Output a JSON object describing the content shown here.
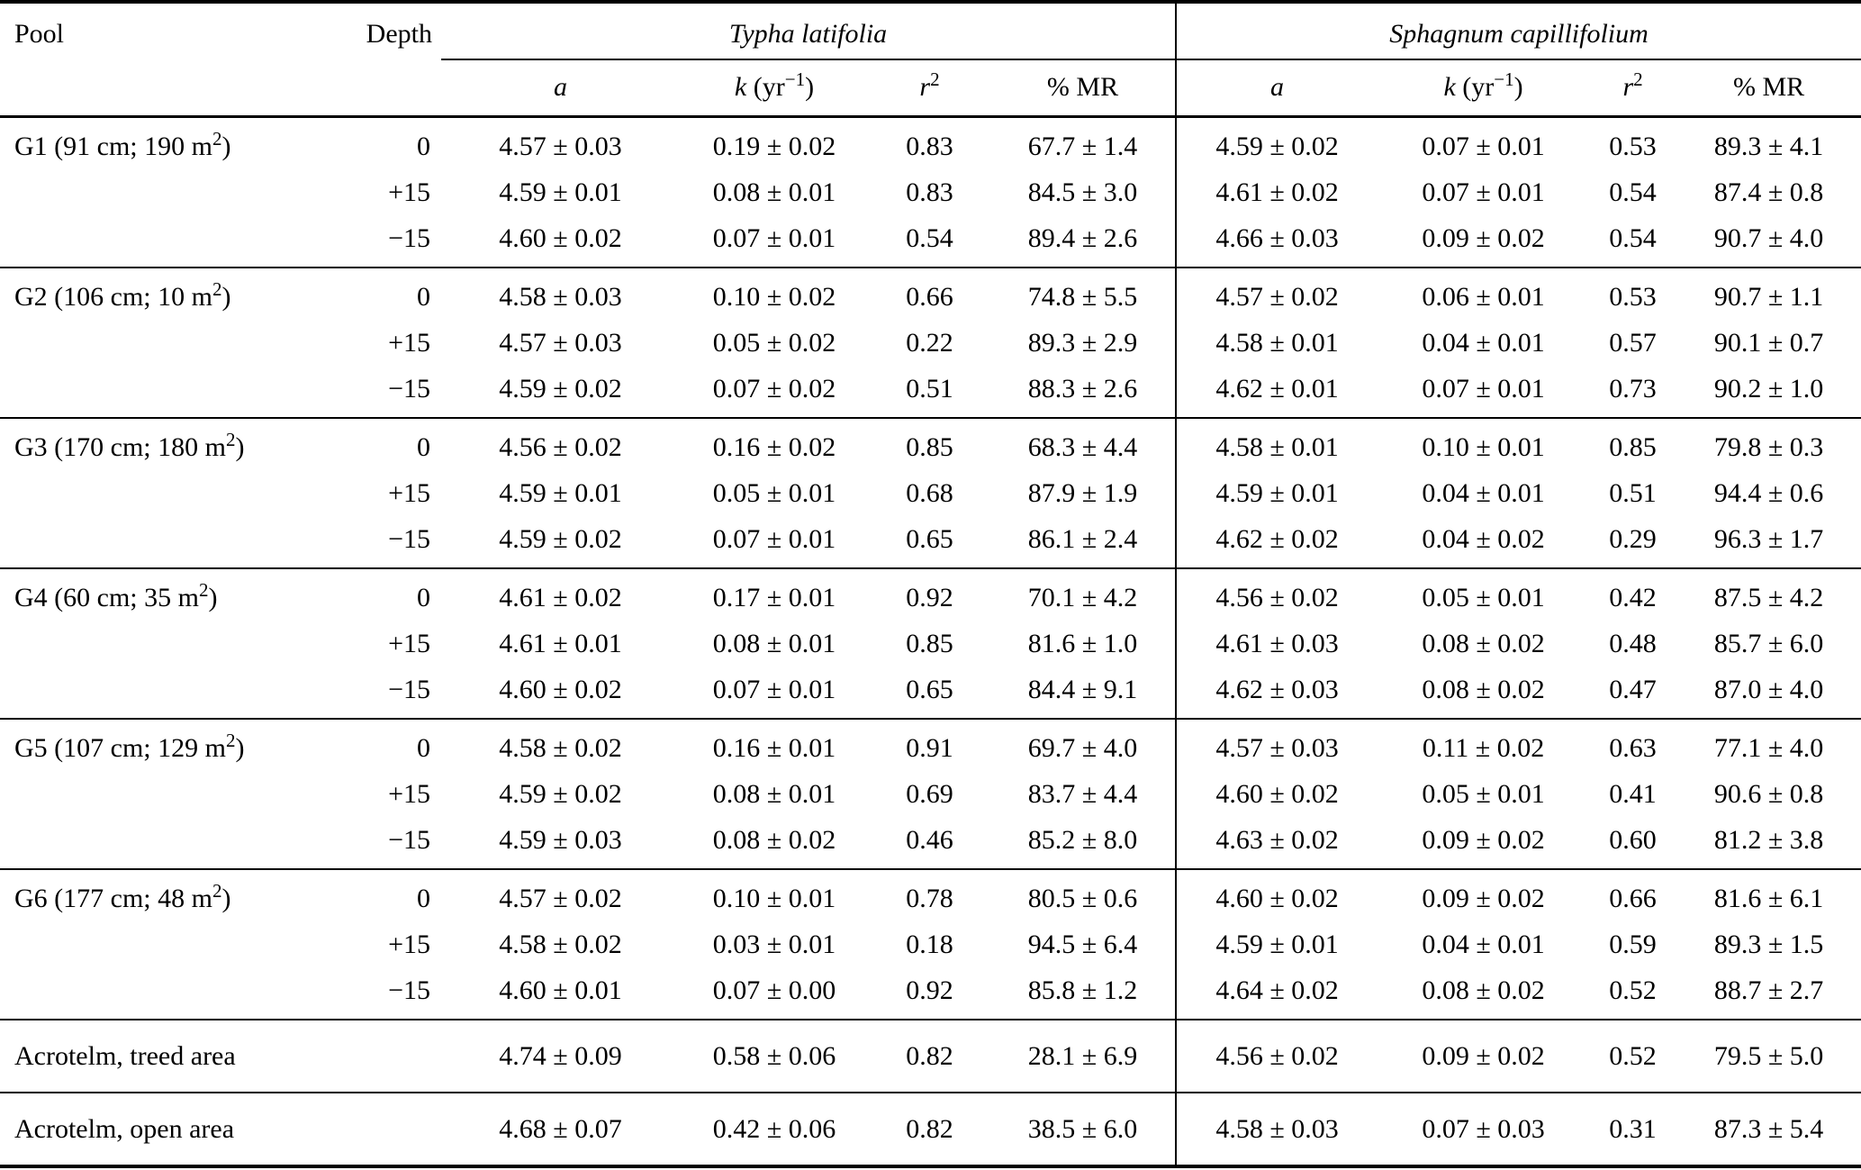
{
  "table": {
    "headers": {
      "pool": "Pool",
      "depth": "Depth",
      "group1": "Typha latifolia",
      "group2": "Sphagnum capillifolium",
      "stats": [
        {
          "sym": "a",
          "pre": "",
          "sup": "",
          "post": ""
        },
        {
          "sym": "k",
          "pre": " (yr",
          "sup": "−1",
          "post": ")"
        },
        {
          "sym": "r",
          "pre": "",
          "sup": "2",
          "post": ""
        },
        {
          "sym": "",
          "pre": "% MR",
          "sup": "",
          "post": ""
        }
      ]
    },
    "blocks": [
      {
        "pool": {
          "text": "G1 (91 cm; 190 m",
          "sup": "2",
          "post": ")"
        },
        "rows": [
          {
            "depth": "0",
            "typha": [
              "4.57 ± 0.03",
              "0.19 ± 0.02",
              "0.83",
              "67.7 ± 1.4"
            ],
            "sphagnum": [
              "4.59 ± 0.02",
              "0.07 ± 0.01",
              "0.53",
              "89.3 ± 4.1"
            ]
          },
          {
            "depth": "+15",
            "typha": [
              "4.59 ± 0.01",
              "0.08 ± 0.01",
              "0.83",
              "84.5 ± 3.0"
            ],
            "sphagnum": [
              "4.61 ± 0.02",
              "0.07 ± 0.01",
              "0.54",
              "87.4 ± 0.8"
            ]
          },
          {
            "depth": "−15",
            "typha": [
              "4.60 ± 0.02",
              "0.07 ± 0.01",
              "0.54",
              "89.4 ± 2.6"
            ],
            "sphagnum": [
              "4.66 ± 0.03",
              "0.09 ± 0.02",
              "0.54",
              "90.7 ± 4.0"
            ]
          }
        ]
      },
      {
        "pool": {
          "text": "G2 (106 cm; 10 m",
          "sup": "2",
          "post": ")"
        },
        "rows": [
          {
            "depth": "0",
            "typha": [
              "4.58 ± 0.03",
              "0.10 ± 0.02",
              "0.66",
              "74.8 ± 5.5"
            ],
            "sphagnum": [
              "4.57 ± 0.02",
              "0.06 ± 0.01",
              "0.53",
              "90.7 ± 1.1"
            ]
          },
          {
            "depth": "+15",
            "typha": [
              "4.57 ± 0.03",
              "0.05 ± 0.02",
              "0.22",
              "89.3 ± 2.9"
            ],
            "sphagnum": [
              "4.58 ± 0.01",
              "0.04 ± 0.01",
              "0.57",
              "90.1 ± 0.7"
            ]
          },
          {
            "depth": "−15",
            "typha": [
              "4.59 ± 0.02",
              "0.07 ± 0.02",
              "0.51",
              "88.3 ± 2.6"
            ],
            "sphagnum": [
              "4.62 ± 0.01",
              "0.07 ± 0.01",
              "0.73",
              "90.2 ± 1.0"
            ]
          }
        ]
      },
      {
        "pool": {
          "text": "G3 (170 cm; 180 m",
          "sup": "2",
          "post": ")"
        },
        "rows": [
          {
            "depth": "0",
            "typha": [
              "4.56 ± 0.02",
              "0.16 ± 0.02",
              "0.85",
              "68.3 ± 4.4"
            ],
            "sphagnum": [
              "4.58 ± 0.01",
              "0.10 ± 0.01",
              "0.85",
              "79.8 ± 0.3"
            ]
          },
          {
            "depth": "+15",
            "typha": [
              "4.59 ± 0.01",
              "0.05 ± 0.01",
              "0.68",
              "87.9 ± 1.9"
            ],
            "sphagnum": [
              "4.59 ± 0.01",
              "0.04 ± 0.01",
              "0.51",
              "94.4 ± 0.6"
            ]
          },
          {
            "depth": "−15",
            "typha": [
              "4.59 ± 0.02",
              "0.07 ± 0.01",
              "0.65",
              "86.1 ± 2.4"
            ],
            "sphagnum": [
              "4.62 ± 0.02",
              "0.04 ± 0.02",
              "0.29",
              "96.3 ± 1.7"
            ]
          }
        ]
      },
      {
        "pool": {
          "text": "G4 (60 cm; 35 m",
          "sup": "2",
          "post": ")"
        },
        "rows": [
          {
            "depth": "0",
            "typha": [
              "4.61 ± 0.02",
              "0.17 ± 0.01",
              "0.92",
              "70.1 ± 4.2"
            ],
            "sphagnum": [
              "4.56 ± 0.02",
              "0.05 ± 0.01",
              "0.42",
              "87.5 ± 4.2"
            ]
          },
          {
            "depth": "+15",
            "typha": [
              "4.61 ± 0.01",
              "0.08 ± 0.01",
              "0.85",
              "81.6 ± 1.0"
            ],
            "sphagnum": [
              "4.61 ± 0.03",
              "0.08 ± 0.02",
              "0.48",
              "85.7 ± 6.0"
            ]
          },
          {
            "depth": "−15",
            "typha": [
              "4.60 ± 0.02",
              "0.07 ± 0.01",
              "0.65",
              "84.4 ± 9.1"
            ],
            "sphagnum": [
              "4.62 ± 0.03",
              "0.08 ± 0.02",
              "0.47",
              "87.0 ± 4.0"
            ]
          }
        ]
      },
      {
        "pool": {
          "text": "G5 (107 cm; 129 m",
          "sup": "2",
          "post": ")"
        },
        "rows": [
          {
            "depth": "0",
            "typha": [
              "4.58 ± 0.02",
              "0.16 ± 0.01",
              "0.91",
              "69.7 ± 4.0"
            ],
            "sphagnum": [
              "4.57 ± 0.03",
              "0.11 ± 0.02",
              "0.63",
              "77.1 ± 4.0"
            ]
          },
          {
            "depth": "+15",
            "typha": [
              "4.59 ± 0.02",
              "0.08 ± 0.01",
              "0.69",
              "83.7 ± 4.4"
            ],
            "sphagnum": [
              "4.60 ± 0.02",
              "0.05 ± 0.01",
              "0.41",
              "90.6 ± 0.8"
            ]
          },
          {
            "depth": "−15",
            "typha": [
              "4.59 ± 0.03",
              "0.08 ± 0.02",
              "0.46",
              "85.2 ± 8.0"
            ],
            "sphagnum": [
              "4.63 ± 0.02",
              "0.09 ± 0.02",
              "0.60",
              "81.2 ± 3.8"
            ]
          }
        ]
      },
      {
        "pool": {
          "text": "G6 (177 cm; 48 m",
          "sup": "2",
          "post": ")"
        },
        "rows": [
          {
            "depth": "0",
            "typha": [
              "4.57 ± 0.02",
              "0.10 ± 0.01",
              "0.78",
              "80.5 ± 0.6"
            ],
            "sphagnum": [
              "4.60 ± 0.02",
              "0.09 ± 0.02",
              "0.66",
              "81.6 ± 6.1"
            ]
          },
          {
            "depth": "+15",
            "typha": [
              "4.58 ± 0.02",
              "0.03 ± 0.01",
              "0.18",
              "94.5 ± 6.4"
            ],
            "sphagnum": [
              "4.59 ± 0.01",
              "0.04 ± 0.01",
              "0.59",
              "89.3 ± 1.5"
            ]
          },
          {
            "depth": "−15",
            "typha": [
              "4.60 ± 0.01",
              "0.07 ± 0.00",
              "0.92",
              "85.8 ± 1.2"
            ],
            "sphagnum": [
              "4.64 ± 0.02",
              "0.08 ± 0.02",
              "0.52",
              "88.7 ± 2.7"
            ]
          }
        ]
      },
      {
        "pool": {
          "text": "Acrotelm, treed area",
          "sup": "",
          "post": ""
        },
        "rows": [
          {
            "depth": "",
            "typha": [
              "4.74 ± 0.09",
              "0.58 ± 0.06",
              "0.82",
              "28.1 ± 6.9"
            ],
            "sphagnum": [
              "4.56 ± 0.02",
              "0.09 ± 0.02",
              "0.52",
              "79.5 ± 5.0"
            ]
          }
        ]
      },
      {
        "pool": {
          "text": "Acrotelm, open area",
          "sup": "",
          "post": ""
        },
        "rows": [
          {
            "depth": "",
            "typha": [
              "4.68 ± 0.07",
              "0.42 ± 0.06",
              "0.82",
              "38.5 ± 6.0"
            ],
            "sphagnum": [
              "4.58 ± 0.03",
              "0.07 ± 0.03",
              "0.31",
              "87.3 ± 5.4"
            ]
          }
        ]
      }
    ]
  }
}
